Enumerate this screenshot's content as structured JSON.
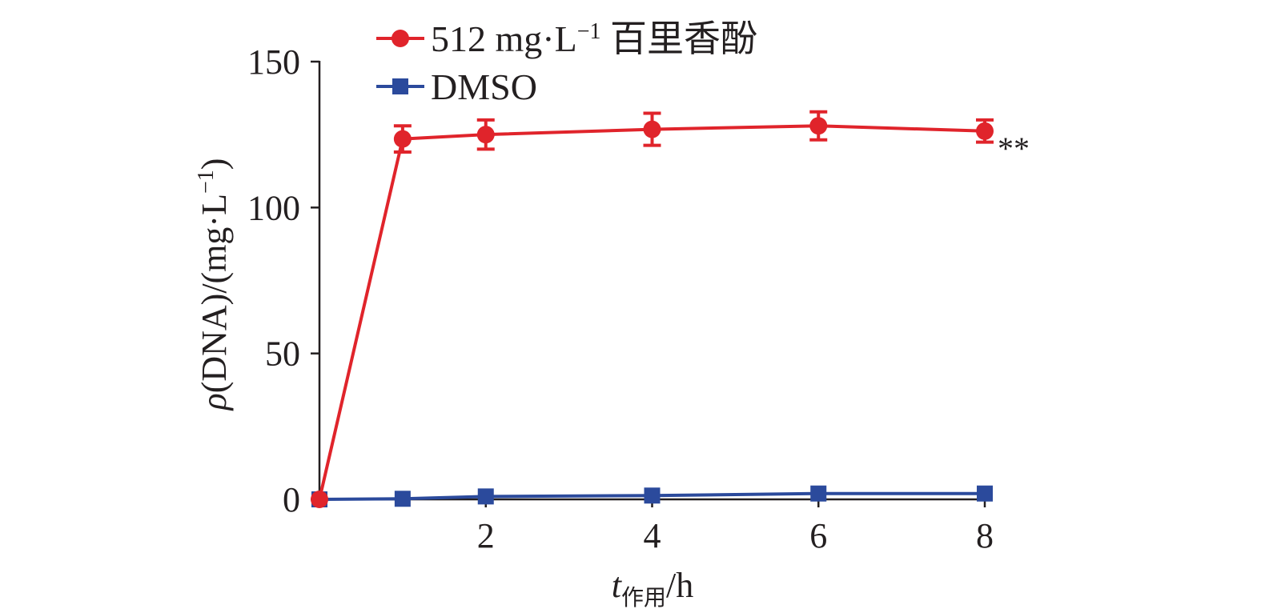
{
  "chart_data": {
    "type": "line",
    "title": "",
    "xlabel": {
      "var": "t",
      "sub": "作用",
      "unit": "/h"
    },
    "ylabel": {
      "var": "ρ",
      "rest": "(DNA)/(mg·L",
      "sup": "−1",
      "close": ")"
    },
    "xlim": [
      0,
      8
    ],
    "ylim": [
      0,
      150
    ],
    "xticks": [
      {
        "value": 2,
        "label": "2"
      },
      {
        "value": 4,
        "label": "4"
      },
      {
        "value": 6,
        "label": "6"
      },
      {
        "value": 8,
        "label": "8"
      }
    ],
    "yticks": [
      {
        "value": 0,
        "label": "0"
      },
      {
        "value": 50,
        "label": "50"
      },
      {
        "value": 100,
        "label": "100"
      },
      {
        "value": 150,
        "label": "150"
      }
    ],
    "grid": false,
    "legend_position": "top",
    "series": [
      {
        "name": "512 mg·L⁻¹ 百里香酚",
        "legend_main": "512 mg·L",
        "legend_sup": "−1",
        "legend_tail": " 百里香酚",
        "color": "#e0242b",
        "marker": "circle",
        "x": [
          0,
          1,
          2,
          4,
          6,
          8
        ],
        "y": [
          0,
          123.5,
          125,
          126.8,
          128,
          126.2
        ],
        "error": [
          0,
          4.5,
          5.0,
          5.5,
          4.8,
          3.8
        ]
      },
      {
        "name": "DMSO",
        "legend_main": "DMSO",
        "legend_sup": "",
        "legend_tail": "",
        "color": "#2b4a9c",
        "marker": "square",
        "x": [
          0,
          1,
          2,
          4,
          6,
          8
        ],
        "y": [
          0,
          0.2,
          1.0,
          1.3,
          2.0,
          2.0
        ],
        "error": [
          0,
          0,
          0,
          0,
          0,
          0
        ]
      }
    ],
    "annotations": [
      {
        "text": "**",
        "series": 0,
        "point": 5
      }
    ]
  }
}
